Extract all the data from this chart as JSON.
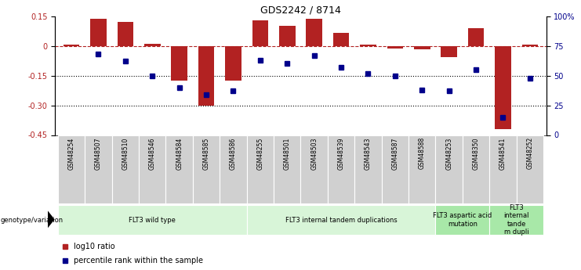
{
  "title": "GDS2242 / 8714",
  "samples": [
    "GSM48254",
    "GSM48507",
    "GSM48510",
    "GSM48546",
    "GSM48584",
    "GSM48585",
    "GSM48586",
    "GSM48255",
    "GSM48501",
    "GSM48503",
    "GSM48539",
    "GSM48543",
    "GSM48587",
    "GSM48588",
    "GSM48253",
    "GSM48350",
    "GSM48541",
    "GSM48252"
  ],
  "log10_ratio": [
    0.005,
    0.135,
    0.12,
    0.01,
    -0.175,
    -0.3,
    -0.175,
    0.128,
    0.1,
    0.138,
    0.065,
    0.008,
    -0.012,
    -0.018,
    -0.055,
    0.09,
    -0.42,
    0.005
  ],
  "percentile_rank": [
    null,
    68,
    62,
    50,
    40,
    34,
    37,
    63,
    60,
    67,
    57,
    52,
    50,
    38,
    37,
    55,
    15,
    48
  ],
  "ylim_left": [
    -0.45,
    0.15
  ],
  "ylim_right": [
    0,
    100
  ],
  "yticks_left": [
    0.15,
    0.0,
    -0.15,
    -0.3,
    -0.45
  ],
  "yticks_right": [
    100,
    75,
    50,
    25,
    0
  ],
  "ytick_labels_left": [
    "0.15",
    "0",
    "-0.15",
    "-0.30",
    "-0.45"
  ],
  "ytick_labels_right": [
    "100%",
    "75",
    "50",
    "25",
    "0"
  ],
  "hline_y": 0.0,
  "dotted_lines": [
    -0.15,
    -0.3
  ],
  "bar_color": "#b22222",
  "dot_color": "#00008b",
  "genotype_groups": [
    {
      "label": "FLT3 wild type",
      "start": 0,
      "end": 7,
      "color": "#d8f5d8"
    },
    {
      "label": "FLT3 internal tandem duplications",
      "start": 7,
      "end": 14,
      "color": "#d8f5d8"
    },
    {
      "label": "FLT3 aspartic acid\nmutation",
      "start": 14,
      "end": 16,
      "color": "#a8e8a8"
    },
    {
      "label": "FLT3\ninternal\ntande\nm dupli",
      "start": 16,
      "end": 18,
      "color": "#a8e8a8"
    }
  ],
  "legend_bar_label": "log10 ratio",
  "legend_dot_label": "percentile rank within the sample",
  "genotype_label": "genotype/variation"
}
